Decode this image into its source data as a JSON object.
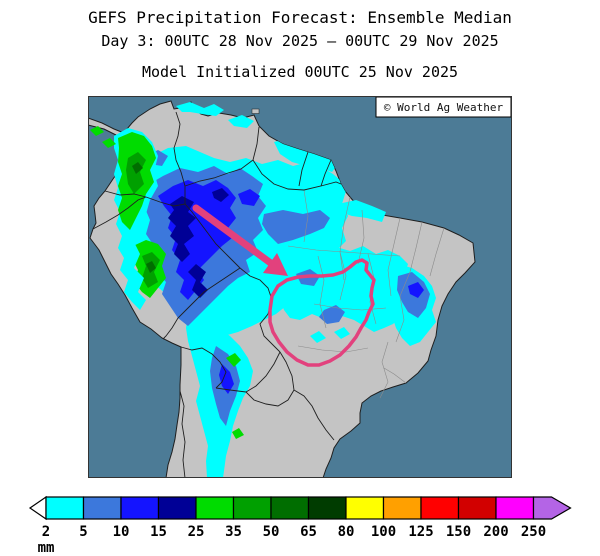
{
  "header": {
    "title": "GEFS Precipitation Forecast: Ensemble Median",
    "date_line": "Day 3: 00UTC 28 Nov 2025 — 00UTC 29 Nov 2025",
    "init_line": "Model Initialized 00UTC 25 Nov 2025"
  },
  "map": {
    "region": "South America",
    "copyright": "© World Ag Weather",
    "ocean_color": "#4C7B96",
    "land_color": "#C4C4C4",
    "annotation_color": "#E2417D"
  },
  "colorbar": {
    "unit": "mm",
    "tick_labels": [
      "2",
      "5",
      "10",
      "15",
      "25",
      "35",
      "50",
      "65",
      "80",
      "100",
      "125",
      "150",
      "200",
      "250"
    ],
    "segment_colors": [
      "#00FFFF",
      "#3C78DC",
      "#1414FF",
      "#000096",
      "#00DC00",
      "#00A000",
      "#006E00",
      "#003C00",
      "#FFFF00",
      "#FFA000",
      "#FF0000",
      "#D20000",
      "#FF00FF"
    ],
    "left_arrow_color": "#FFFFFF",
    "right_arrow_color": "#B464E6"
  }
}
